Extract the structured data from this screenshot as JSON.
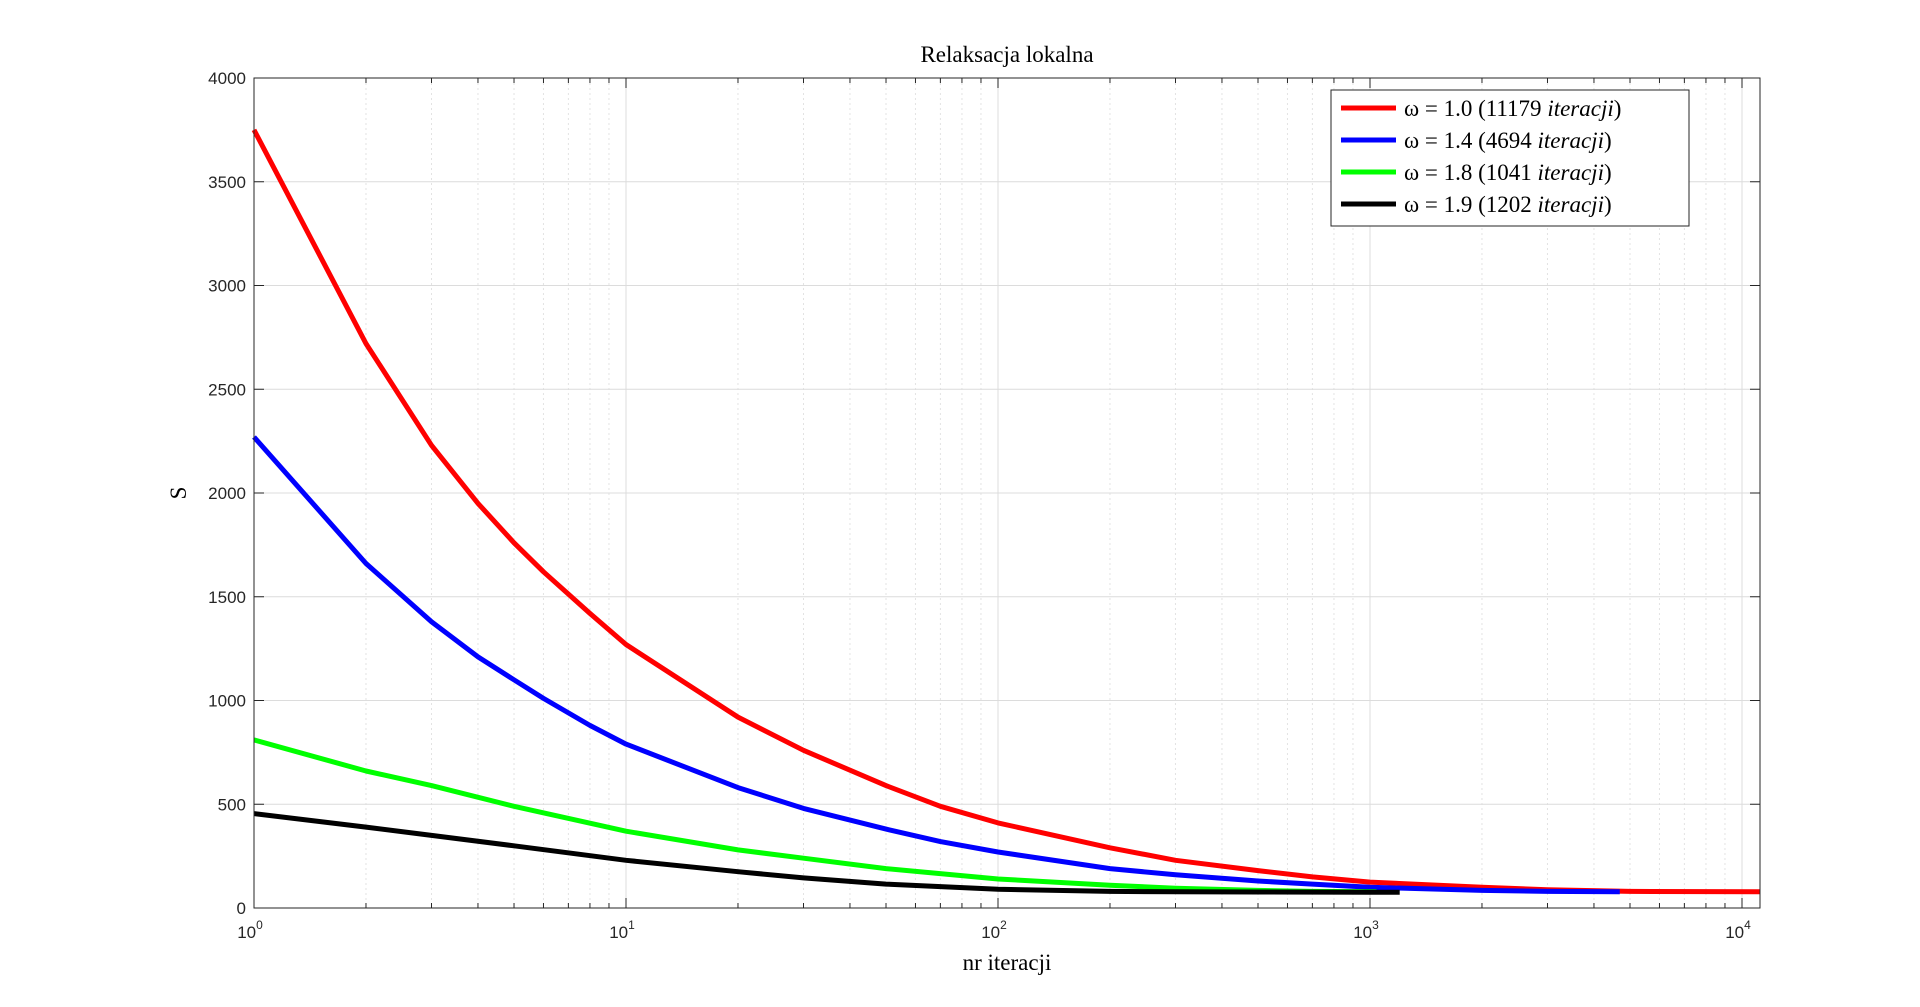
{
  "chart_data": {
    "type": "line",
    "title": "Relaksacja lokalna",
    "xlabel": "nr iteracji",
    "ylabel": "S",
    "xscale": "log",
    "xlim": [
      1,
      11179
    ],
    "ylim": [
      0,
      4000
    ],
    "grid": true,
    "minor_grid_x": true,
    "legend_position": "top-right",
    "x_ticks": [
      {
        "base": "10",
        "exp": "0"
      },
      {
        "base": "10",
        "exp": "1"
      },
      {
        "base": "10",
        "exp": "2"
      },
      {
        "base": "10",
        "exp": "3"
      },
      {
        "base": "10",
        "exp": "4"
      }
    ],
    "y_ticks": [
      "0",
      "500",
      "1000",
      "1500",
      "2000",
      "2500",
      "3000",
      "3500",
      "4000"
    ],
    "series": [
      {
        "omega_label": "ω = 1.0",
        "count": "11179",
        "word": "iteracji",
        "color": "#ff0000",
        "x": [
          1,
          2,
          3,
          4,
          5,
          6,
          8,
          10,
          20,
          30,
          50,
          70,
          100,
          200,
          300,
          500,
          700,
          1000,
          2000,
          3000,
          5000,
          11179
        ],
        "y": [
          3750,
          2720,
          2230,
          1950,
          1760,
          1620,
          1420,
          1270,
          920,
          760,
          590,
          490,
          410,
          290,
          230,
          180,
          150,
          125,
          100,
          88,
          80,
          78
        ]
      },
      {
        "omega_label": "ω = 1.4",
        "count": "4694",
        "word": "iteracji",
        "color": "#0000ff",
        "x": [
          1,
          2,
          3,
          4,
          5,
          6,
          8,
          10,
          20,
          30,
          50,
          70,
          100,
          200,
          300,
          500,
          700,
          1000,
          2000,
          3000,
          4694
        ],
        "y": [
          2270,
          1660,
          1380,
          1210,
          1100,
          1010,
          880,
          790,
          580,
          480,
          380,
          320,
          270,
          190,
          160,
          130,
          115,
          100,
          85,
          80,
          78
        ]
      },
      {
        "omega_label": "ω = 1.8",
        "count": "1041",
        "word": "iteracji",
        "color": "#00ff00",
        "x": [
          1,
          2,
          3,
          5,
          10,
          20,
          30,
          50,
          100,
          200,
          300,
          500,
          700,
          1041
        ],
        "y": [
          810,
          660,
          590,
          490,
          370,
          280,
          240,
          190,
          140,
          110,
          95,
          85,
          80,
          78
        ]
      },
      {
        "omega_label": "ω = 1.9",
        "count": "1202",
        "word": "iteracji",
        "color": "#000000",
        "x": [
          1,
          2,
          3,
          5,
          10,
          20,
          30,
          50,
          100,
          200,
          300,
          500,
          1000,
          1202
        ],
        "y": [
          455,
          390,
          350,
          300,
          230,
          175,
          145,
          115,
          90,
          80,
          78,
          77,
          76,
          76
        ]
      }
    ]
  }
}
